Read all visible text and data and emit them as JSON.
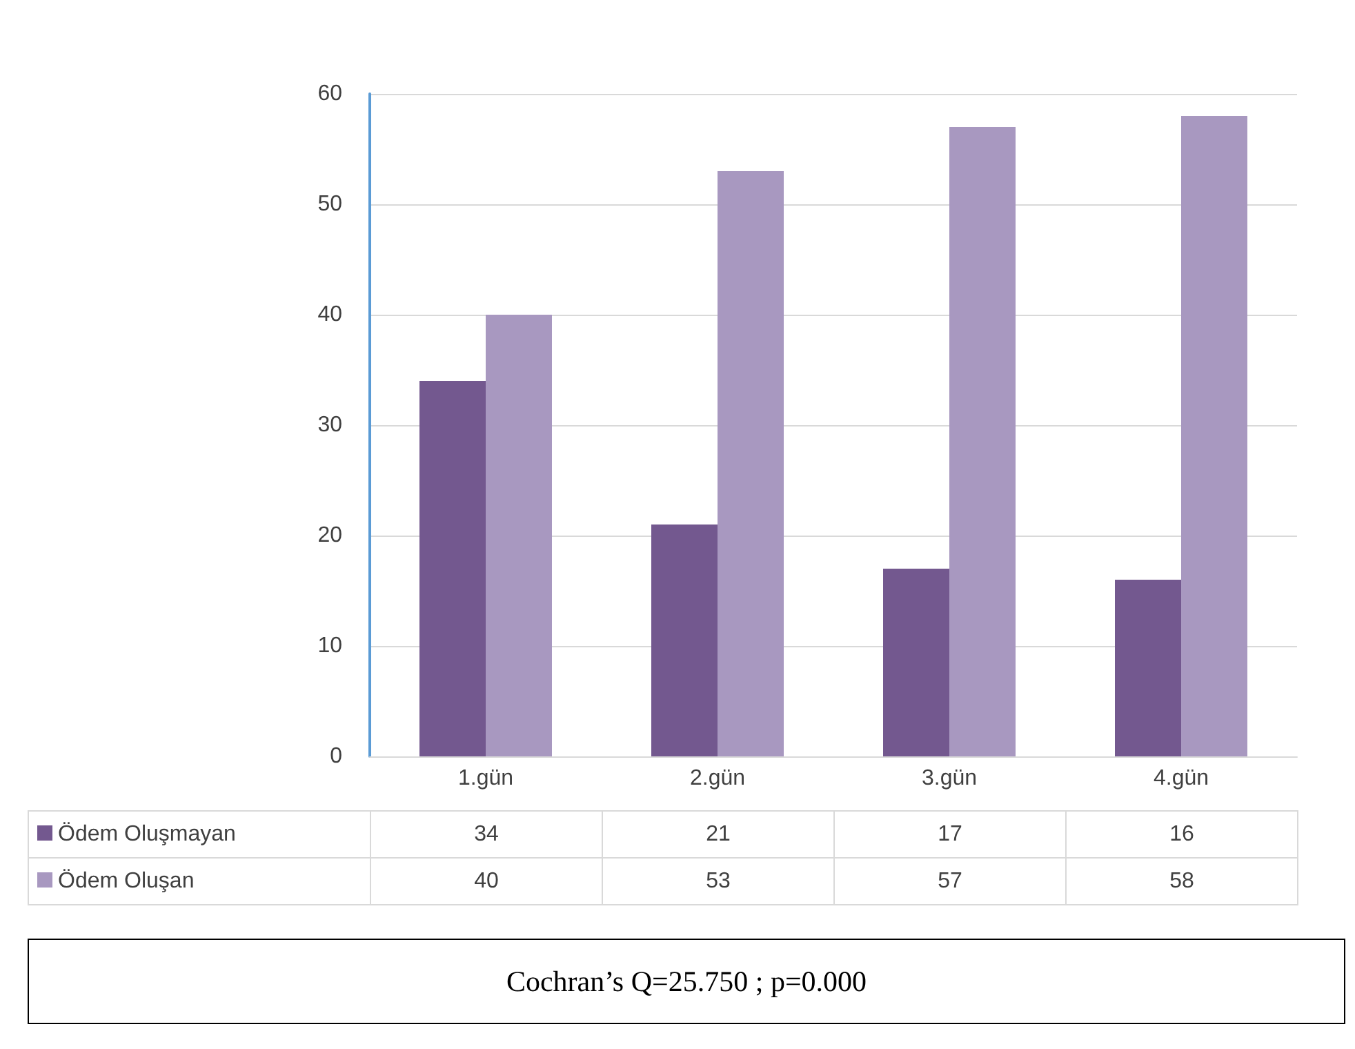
{
  "chart_data": {
    "type": "bar",
    "categories": [
      "1.gün",
      "2.gün",
      "3.gün",
      "4.gün"
    ],
    "series": [
      {
        "name": "Ödem Oluşmayan",
        "color": "#73588f",
        "values": [
          34,
          21,
          17,
          16
        ]
      },
      {
        "name": "Ödem Oluşan",
        "color": "#a898c0",
        "values": [
          40,
          53,
          57,
          58
        ]
      }
    ],
    "ylim": [
      0,
      60
    ],
    "yticks": [
      0,
      10,
      20,
      30,
      40,
      50,
      60
    ],
    "grid": "y",
    "legend": "bottom",
    "data_labels": true,
    "annotations": [
      "Cochran’s Q=25.750 ; p=0.000"
    ]
  }
}
